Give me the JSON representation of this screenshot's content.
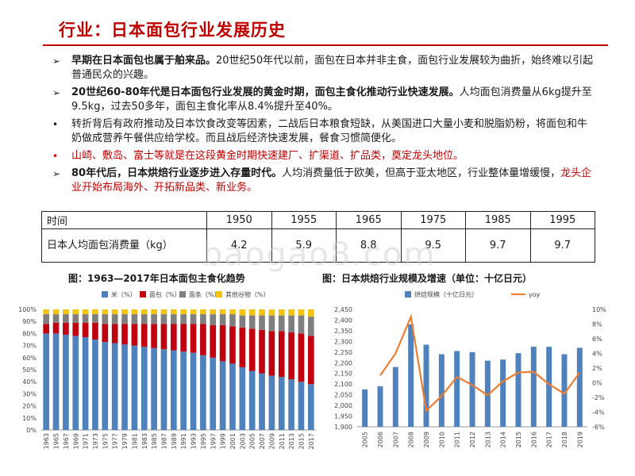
{
  "header": {
    "title": "行业：日本面包行业发展历史"
  },
  "bullets": [
    {
      "mark": "➢",
      "bold": "早期在日本面包也属于舶来品。",
      "text": "20世纪50年代以前，面包在日本并非主食，面包行业发展较为曲折，始终难以引起普通民众的兴趣。"
    },
    {
      "mark": "➢",
      "bold": "20世纪60-80年代是日本面包行业发展的黄金时期，面包主食化推动行业快速发展。",
      "text": "人均面包消费量从6kg提升至9.5kg，过去50多年，面包主食化率从8.4%提升至40%。"
    },
    {
      "mark": "•",
      "text": "转折背后有政府推动及日本饮食改变等因素，二战后日本粮食短缺，从美国进口大量小麦和脱脂奶粉，将面包和牛奶做成营养午餐供应给学校。而且战后经济快速发展，餐食习惯简便化。"
    },
    {
      "mark": "•",
      "text": "山崎、敷岛、富士等就是在这段黄金时期快速建厂、扩渠道、扩品类，奠定龙头地位。"
    },
    {
      "mark": "➢",
      "bold": "80年代后，日本烘焙行业逐步进入存量时代。",
      "text": "人均消费量低于欧美，但高于亚太地区，行业整体量增缓慢，",
      "red": "龙头企业开始布局海外、开拓新品类、新业务。"
    }
  ],
  "table": {
    "row1_head": "时间",
    "years": [
      "1950",
      "1955",
      "1965",
      "1975",
      "1985",
      "1995"
    ],
    "row2_head": "日本人均面包消费量（kg）",
    "values": [
      "4.2",
      "5.9",
      "8.8",
      "9.5",
      "9.7",
      "9.7"
    ]
  },
  "watermark": "baogao8.com",
  "chart_left_title": "图：1963—2017年日本面包主食化趋势",
  "chart_right_title": "图：日本烘焙行业规模及增速（单位：十亿日元）",
  "chart_data": [
    {
      "type": "bar",
      "stacked": true,
      "title": "图：1963—2017年日本面包主食化趋势",
      "series_names": [
        "米（%）",
        "面包（%）",
        "面条（%）",
        "其他谷物（%）"
      ],
      "colors": [
        "#4f81bd",
        "#c0000f",
        "#7f7f7f",
        "#f2c40f"
      ],
      "x": [
        "1963",
        "1965",
        "1967",
        "1969",
        "1971",
        "1973",
        "1975",
        "1977",
        "1979",
        "1981",
        "1983",
        "1985",
        "1987",
        "1989",
        "1991",
        "1993",
        "1995",
        "1997",
        "1999",
        "2001",
        "2003",
        "2005",
        "2007",
        "2009",
        "2011",
        "2013",
        "2015",
        "2017"
      ],
      "rice": [
        80,
        80,
        79,
        78,
        77,
        75,
        73,
        72,
        71,
        70,
        69,
        68,
        67,
        66,
        65,
        64,
        62,
        60,
        57,
        55,
        52,
        49,
        47,
        45,
        44,
        42,
        40,
        38
      ],
      "bread": [
        8,
        9,
        10,
        11,
        12,
        14,
        15,
        16,
        17,
        18,
        19,
        20,
        21,
        22,
        23,
        24,
        26,
        27,
        30,
        31,
        33,
        35,
        36,
        37,
        38,
        39,
        40,
        40
      ],
      "noodles": [
        8,
        7,
        7,
        7,
        7,
        7,
        8,
        8,
        8,
        8,
        8,
        8,
        8,
        8,
        8,
        8,
        8,
        9,
        9,
        10,
        10,
        11,
        12,
        13,
        13,
        14,
        15,
        16
      ],
      "other": [
        4,
        4,
        4,
        4,
        4,
        4,
        4,
        4,
        4,
        4,
        4,
        4,
        4,
        4,
        4,
        4,
        4,
        4,
        4,
        4,
        5,
        5,
        5,
        5,
        5,
        5,
        5,
        6
      ],
      "yticks": [
        "0%",
        "10%",
        "20%",
        "30%",
        "40%",
        "50%",
        "60%",
        "70%",
        "80%",
        "90%",
        "100%"
      ],
      "ylim": [
        0,
        100
      ],
      "legend": "top"
    },
    {
      "type": "bar+line",
      "title": "图：日本烘焙行业规模及增速（单位：十亿日元）",
      "x": [
        "2005",
        "2006",
        "2007",
        "2008",
        "2009",
        "2010",
        "2011",
        "2012",
        "2013",
        "2014",
        "2015",
        "2016",
        "2017",
        "2018",
        "2019"
      ],
      "series": [
        {
          "name": "烘焙规模（十亿日元）",
          "values": [
            2075,
            2090,
            2180,
            2380,
            2285,
            2240,
            2255,
            2250,
            2210,
            2215,
            2245,
            2275,
            2275,
            2240,
            2270
          ],
          "color": "#4f81bd"
        },
        {
          "name": "yoy",
          "values": [
            null,
            1.0,
            4.0,
            9.0,
            -3.8,
            -1.8,
            0.8,
            -0.3,
            -1.7,
            0.2,
            1.4,
            1.5,
            -0.2,
            -1.5,
            1.4
          ],
          "color": "#ed7d31"
        }
      ],
      "ylim_left": [
        1900,
        2450
      ],
      "ylim_right": [
        -6,
        10
      ],
      "yticks_left": [
        "1,900",
        "1,950",
        "2,000",
        "2,050",
        "2,100",
        "2,150",
        "2,200",
        "2,250",
        "2,300",
        "2,350",
        "2,400",
        "2,450"
      ],
      "yticks_right": [
        "-6%",
        "-4%",
        "-2%",
        "0%",
        "2%",
        "4%",
        "6%",
        "8%",
        "10%"
      ],
      "legend": "top"
    }
  ]
}
